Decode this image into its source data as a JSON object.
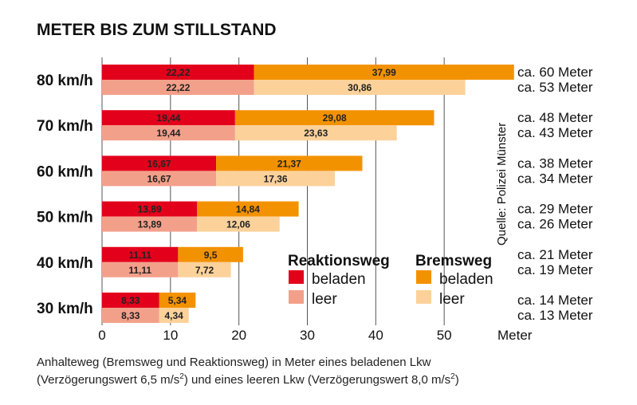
{
  "chart_data": {
    "type": "bar",
    "orientation": "horizontal",
    "stacked": true,
    "title": "METER BIS ZUM STILLSTAND",
    "categories": [
      "80 km/h",
      "70 km/h",
      "60 km/h",
      "50 km/h",
      "40 km/h",
      "30 km/h"
    ],
    "rows": [
      {
        "loaded": {
          "reaction": 22.22,
          "braking": 37.99,
          "reaction_label": "22,22",
          "braking_label": "37,99",
          "total_label": "ca. 60 Meter"
        },
        "empty": {
          "reaction": 22.22,
          "braking": 30.86,
          "reaction_label": "22,22",
          "braking_label": "30,86",
          "total_label": "ca. 53 Meter"
        }
      },
      {
        "loaded": {
          "reaction": 19.44,
          "braking": 29.08,
          "reaction_label": "19,44",
          "braking_label": "29,08",
          "total_label": "ca. 48 Meter"
        },
        "empty": {
          "reaction": 19.44,
          "braking": 23.63,
          "reaction_label": "19,44",
          "braking_label": "23,63",
          "total_label": "ca. 43 Meter"
        }
      },
      {
        "loaded": {
          "reaction": 16.67,
          "braking": 21.37,
          "reaction_label": "16,67",
          "braking_label": "21,37",
          "total_label": "ca. 38 Meter"
        },
        "empty": {
          "reaction": 16.67,
          "braking": 17.36,
          "reaction_label": "16,67",
          "braking_label": "17,36",
          "total_label": "ca. 34 Meter"
        }
      },
      {
        "loaded": {
          "reaction": 13.89,
          "braking": 14.84,
          "reaction_label": "13,89",
          "braking_label": "14,84",
          "total_label": "ca. 29 Meter"
        },
        "empty": {
          "reaction": 13.89,
          "braking": 12.06,
          "reaction_label": "13,89",
          "braking_label": "12,06",
          "total_label": "ca. 26 Meter"
        }
      },
      {
        "loaded": {
          "reaction": 11.11,
          "braking": 9.5,
          "reaction_label": "11,11",
          "braking_label": "9,5",
          "total_label": "ca. 21 Meter"
        },
        "empty": {
          "reaction": 11.11,
          "braking": 7.72,
          "reaction_label": "11,11",
          "braking_label": "7,72",
          "total_label": "ca. 19 Meter"
        }
      },
      {
        "loaded": {
          "reaction": 8.33,
          "braking": 5.34,
          "reaction_label": "8,33",
          "braking_label": "5,34",
          "total_label": "ca. 14 Meter"
        },
        "empty": {
          "reaction": 8.33,
          "braking": 4.34,
          "reaction_label": "8,33",
          "braking_label": "4,34",
          "total_label": "ca. 13 Meter"
        }
      }
    ],
    "xlim": [
      0,
      60
    ],
    "xticks": [
      "0",
      "10",
      "20",
      "30",
      "40",
      "50"
    ],
    "xlabel": "Meter",
    "grid": true,
    "legend": {
      "placement": "bottom-right",
      "groups": [
        {
          "title": "Reaktionsweg",
          "items": [
            {
              "label": "beladen",
              "color": "#e3001b"
            },
            {
              "label": "leer",
              "color": "#f3a08a"
            }
          ]
        },
        {
          "title": "Bremsweg",
          "items": [
            {
              "label": "beladen",
              "color": "#f39200"
            },
            {
              "label": "leer",
              "color": "#fcd29a"
            }
          ]
        }
      ]
    },
    "source": "Quelle: Polizei Münster",
    "caption": {
      "line1": "Anhalteweg (Bremsweg und Reaktionsweg) in Meter eines beladenen Lkw",
      "line2_a": "(Verzögerungswert 6,5 m/s",
      "line2_b": ") und eines leeren Lkw (Verzögerungswert 8,0 m/s",
      "line2_c": ")",
      "superscript": "2"
    },
    "colors": {
      "reaction_loaded": "#e3001b",
      "reaction_empty": "#f3a08a",
      "braking_loaded": "#f39200",
      "braking_empty": "#fcd29a",
      "grid": "#555555"
    }
  }
}
